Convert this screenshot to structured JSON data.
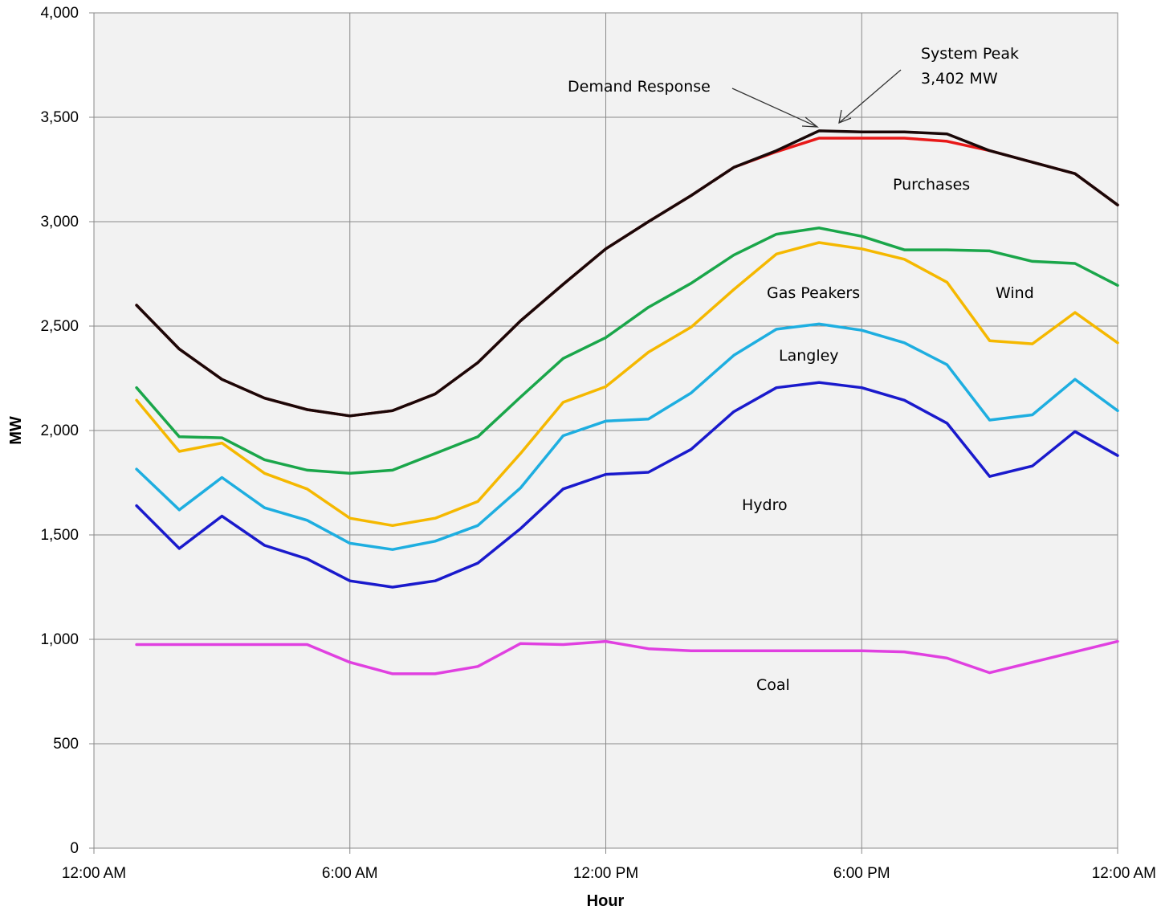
{
  "chart_data": {
    "type": "line",
    "title": "",
    "xlabel": "Hour",
    "ylabel": "MW",
    "ylim": [
      0,
      4000
    ],
    "xlim": [
      0,
      24
    ],
    "x_tick_labels": [
      "12:00 AM",
      "6:00 AM",
      "12:00 PM",
      "6:00 PM",
      "12:00 AM"
    ],
    "y_tick_labels": [
      "0",
      "500",
      "1,000",
      "1,500",
      "2,000",
      "2,500",
      "3,000",
      "3,500",
      "4,000"
    ],
    "grid": true,
    "x": [
      1,
      2,
      3,
      4,
      5,
      6,
      7,
      8,
      9,
      10,
      11,
      12,
      13,
      14,
      15,
      16,
      17,
      18,
      19,
      20,
      21,
      22,
      23,
      24
    ],
    "series": [
      {
        "color": "#e040e0",
        "values": [
          975,
          975,
          975,
          975,
          975,
          890,
          835,
          835,
          870,
          980,
          975,
          990,
          955,
          945,
          945,
          945,
          945,
          945,
          940,
          910,
          840,
          890,
          940,
          990
        ]
      },
      {
        "color": "#1a1acc",
        "values": [
          1640,
          1435,
          1590,
          1450,
          1385,
          1280,
          1250,
          1280,
          1365,
          1530,
          1720,
          1790,
          1800,
          1910,
          2090,
          2205,
          2230,
          2205,
          2145,
          2035,
          1780,
          1830,
          1995,
          1880
        ]
      },
      {
        "color": "#1eaee0",
        "values": [
          1815,
          1620,
          1775,
          1630,
          1570,
          1460,
          1430,
          1470,
          1545,
          1725,
          1975,
          2045,
          2055,
          2180,
          2360,
          2485,
          2510,
          2480,
          2420,
          2315,
          2050,
          2075,
          2245,
          2095
        ]
      },
      {
        "color": "#f5b800",
        "values": [
          2145,
          1900,
          1940,
          1795,
          1720,
          1580,
          1545,
          1580,
          1660,
          1890,
          2135,
          2210,
          2375,
          2495,
          2675,
          2845,
          2900,
          2870,
          2820,
          2710,
          2430,
          2415,
          2565,
          2420
        ]
      },
      {
        "color": "#1aa64a",
        "values": [
          2205,
          1970,
          1965,
          1860,
          1810,
          1795,
          1810,
          1890,
          1970,
          2160,
          2345,
          2445,
          2590,
          2705,
          2840,
          2940,
          2970,
          2930,
          2865,
          2865,
          2860,
          2810,
          2800,
          2695
        ]
      },
      {
        "color": "#e81818",
        "values": [
          2600,
          2390,
          2245,
          2155,
          2100,
          2070,
          2095,
          2175,
          2325,
          2525,
          2700,
          2870,
          3000,
          3125,
          3260,
          3335,
          3400,
          3400,
          3400,
          3385,
          3340,
          3285,
          3230,
          3080
        ]
      },
      {
        "color": "#1a0808",
        "values": [
          2600,
          2390,
          2245,
          2155,
          2100,
          2070,
          2095,
          2175,
          2325,
          2525,
          2700,
          2870,
          3000,
          3125,
          3260,
          3340,
          3435,
          3430,
          3430,
          3420,
          3340,
          3285,
          3230,
          3080
        ]
      }
    ],
    "annotations": {
      "purchases": "Purchases",
      "gas_peakers": "Gas Peakers",
      "wind": "Wind",
      "langley": "Langley",
      "hydro": "Hydro",
      "coal": "Coal",
      "demand_response": "Demand Response",
      "system_peak_line1": "System Peak",
      "system_peak_line2": "3,402 MW"
    }
  }
}
